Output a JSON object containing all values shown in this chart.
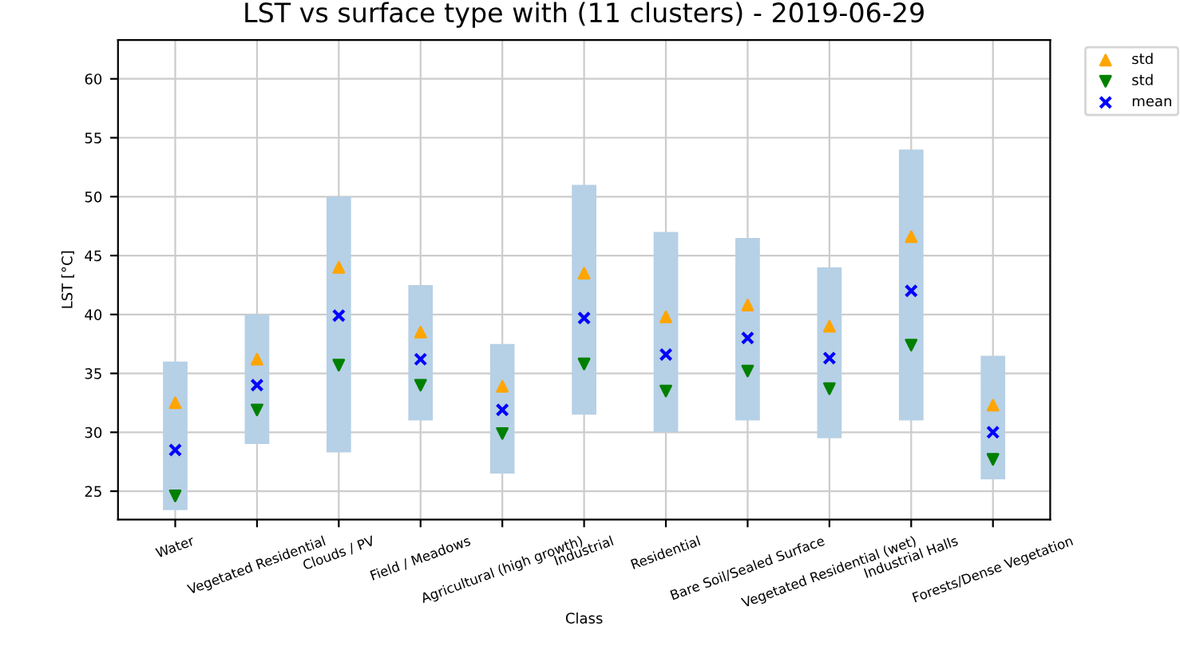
{
  "chart_data": {
    "type": "scatter",
    "title": "LST vs surface type with (11 clusters) - 2019-06-29",
    "xlabel": "Class",
    "ylabel": "LST [°C]",
    "categories": [
      "Water",
      "Vegetated Residential",
      "Clouds / PV",
      "Field / Meadows",
      "Agricultural (high growth)",
      "Industrial",
      "Residential",
      "Bare Soil/Sealed Surface",
      "Vegetated Residential (wet)",
      "Industrial Halls",
      "Forests/Dense Vegetation"
    ],
    "series": [
      {
        "type": "bar",
        "color": "#b6d0e6",
        "base": [
          23.4,
          29.0,
          28.3,
          31.0,
          26.5,
          31.5,
          30.0,
          31.0,
          29.5,
          31.0,
          26.0
        ],
        "values": [
          12.6,
          11.0,
          21.7,
          11.5,
          11.0,
          19.5,
          17.0,
          15.5,
          14.5,
          23.0,
          10.5
        ]
      },
      {
        "name": "std",
        "color": "#ffa500",
        "marker": "triangle",
        "values": [
          32.5,
          36.2,
          44.0,
          38.5,
          33.9,
          43.5,
          39.8,
          40.8,
          39.0,
          46.6,
          32.3
        ]
      },
      {
        "name": "std",
        "color": "#008000",
        "marker": "triangle_down",
        "values": [
          24.6,
          31.9,
          35.7,
          34.0,
          29.9,
          35.8,
          33.5,
          35.2,
          33.7,
          37.4,
          27.7
        ]
      },
      {
        "name": "mean",
        "color": "#0000ff",
        "marker": "cross",
        "values": [
          28.5,
          34.0,
          39.9,
          36.2,
          31.9,
          39.7,
          36.6,
          38.0,
          36.3,
          42.0,
          30.0
        ]
      }
    ],
    "ylim": [
      22.6,
      63.3
    ],
    "yticks": [
      25,
      30,
      35,
      40,
      45,
      50,
      55,
      60
    ],
    "grid": true,
    "legend": "top right"
  }
}
